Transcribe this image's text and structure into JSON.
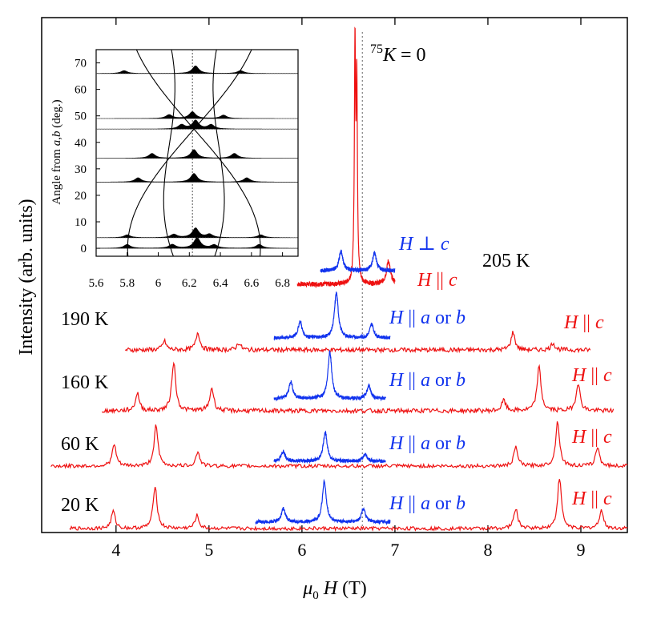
{
  "chart_data": {
    "type": "line",
    "xlabel": {
      "symbol": "μ",
      "sub": "0",
      "var": "H",
      "unit": "(T)"
    },
    "ylabel": "Intensity (arb. units)",
    "xlim": [
      3.2,
      9.5
    ],
    "xticks": [
      "4",
      "5",
      "6",
      "7",
      "8",
      "9"
    ],
    "reference_line": {
      "x": 6.65,
      "label_sup": "75",
      "label_var": "K",
      "label_rest": " = 0"
    },
    "colors": {
      "parallel_c": "#ee1111",
      "perp_c": "#1133ee"
    },
    "temperatures": [
      "205 K",
      "190 K",
      "160 K",
      "60 K",
      "20 K"
    ],
    "labels": {
      "h_perp_c": {
        "var": "H",
        "op": " ⊥ ",
        "axis": "c"
      },
      "h_par_c": {
        "var": "H",
        "op": " || ",
        "axis": "c"
      },
      "h_par_ab": {
        "var": "H",
        "op": " || ",
        "axis": "a",
        "or": " or ",
        "axis2": "b"
      }
    },
    "series": [
      {
        "temperature": "205 K",
        "field": "H || c",
        "color": "red",
        "range": [
          5.95,
          7.0
        ],
        "peaks": [
          [
            6.57,
            12
          ],
          [
            6.59,
            10
          ],
          [
            6.93,
            1.2
          ]
        ]
      },
      {
        "temperature": "205 K",
        "field": "H ⊥ c",
        "color": "blue",
        "range": [
          6.2,
          7.0
        ],
        "peaks": [
          [
            6.42,
            1.2
          ],
          [
            6.78,
            1.1
          ]
        ]
      },
      {
        "temperature": "190 K",
        "field": "H || a or b",
        "color": "blue",
        "range": [
          5.7,
          6.95
        ],
        "peaks": [
          [
            5.98,
            1.2
          ],
          [
            6.37,
            3.3
          ],
          [
            6.75,
            1.0
          ]
        ]
      },
      {
        "temperature": "190 K",
        "field": "H || c",
        "color": "red",
        "range": [
          4.1,
          9.1
        ],
        "peaks": [
          [
            4.52,
            0.5
          ],
          [
            4.88,
            1.0
          ],
          [
            5.32,
            0.4
          ],
          [
            8.27,
            1.0
          ],
          [
            8.7,
            0.4
          ]
        ]
      },
      {
        "temperature": "160 K",
        "field": "H || a or b",
        "color": "blue",
        "range": [
          5.7,
          6.9
        ],
        "peaks": [
          [
            5.88,
            1.2
          ],
          [
            6.3,
            3.2
          ],
          [
            6.72,
            0.9
          ]
        ]
      },
      {
        "temperature": "160 K",
        "field": "H || c",
        "color": "red",
        "range": [
          3.85,
          9.35
        ],
        "peaks": [
          [
            4.23,
            1.0
          ],
          [
            4.62,
            2.8
          ],
          [
            5.03,
            1.3
          ],
          [
            8.17,
            0.6
          ],
          [
            8.55,
            2.5
          ],
          [
            8.97,
            1.6
          ]
        ]
      },
      {
        "temperature": "60 K",
        "field": "H || a or b",
        "color": "blue",
        "range": [
          5.7,
          6.9
        ],
        "peaks": [
          [
            5.8,
            0.7
          ],
          [
            6.25,
            2.0
          ],
          [
            6.68,
            0.5
          ]
        ]
      },
      {
        "temperature": "60 K",
        "field": "H || c",
        "color": "red",
        "range": [
          3.3,
          9.5
        ],
        "peaks": [
          [
            3.98,
            1.5
          ],
          [
            4.43,
            2.8
          ],
          [
            4.88,
            1.0
          ],
          [
            8.3,
            1.3
          ],
          [
            8.75,
            3.1
          ],
          [
            9.18,
            1.3
          ]
        ]
      },
      {
        "temperature": "20 K",
        "field": "H || a or b",
        "color": "blue",
        "range": [
          5.5,
          6.95
        ],
        "peaks": [
          [
            5.8,
            1.0
          ],
          [
            6.24,
            3.0
          ],
          [
            6.66,
            1.0
          ]
        ]
      },
      {
        "temperature": "20 K",
        "field": "H || c",
        "color": "red",
        "range": [
          3.5,
          9.5
        ],
        "peaks": [
          [
            3.97,
            1.2
          ],
          [
            4.42,
            3.0
          ],
          [
            4.87,
            0.9
          ],
          [
            8.3,
            1.4
          ],
          [
            8.77,
            3.5
          ],
          [
            9.22,
            1.3
          ]
        ]
      }
    ],
    "inset": {
      "ylabel": "Angle from a,b (deg.)",
      "ylabel_pre": "Angle from ",
      "ylabel_a": "a",
      "ylabel_comma": ",",
      "ylabel_b": "b",
      "ylabel_post": " (deg.)",
      "xlim": [
        5.6,
        6.9
      ],
      "ylim": [
        -3,
        75
      ],
      "xticks": [
        "5.6",
        "5.8",
        "6",
        "6.2",
        "6.4",
        "6.6",
        "6.8"
      ],
      "yticks": [
        "0",
        "10",
        "20",
        "30",
        "40",
        "50",
        "60",
        "70"
      ],
      "reference_x": 6.22,
      "spectra": [
        {
          "angle": 0,
          "peaks": [
            [
              5.8,
              0.8
            ],
            [
              6.09,
              0.8
            ],
            [
              6.25,
              2.2
            ],
            [
              6.36,
              0.7
            ],
            [
              6.65,
              0.8
            ]
          ]
        },
        {
          "angle": 4,
          "peaks": [
            [
              5.8,
              0.6
            ],
            [
              6.1,
              0.7
            ],
            [
              6.24,
              2.0
            ],
            [
              6.33,
              0.7
            ],
            [
              6.66,
              0.6
            ]
          ]
        },
        {
          "angle": 25,
          "peaks": [
            [
              5.87,
              0.9
            ],
            [
              6.23,
              1.8
            ],
            [
              6.57,
              0.9
            ]
          ]
        },
        {
          "angle": 34,
          "peaks": [
            [
              5.96,
              1.0
            ],
            [
              6.23,
              1.8
            ],
            [
              6.49,
              1.0
            ]
          ]
        },
        {
          "angle": 45,
          "peaks": [
            [
              6.15,
              0.9
            ],
            [
              6.24,
              1.8
            ],
            [
              6.34,
              0.9
            ]
          ]
        },
        {
          "angle": 49,
          "peaks": [
            [
              6.07,
              0.8
            ],
            [
              6.22,
              1.4
            ],
            [
              6.42,
              0.7
            ]
          ]
        },
        {
          "angle": 66,
          "peaks": [
            [
              5.78,
              0.6
            ],
            [
              6.24,
              1.6
            ],
            [
              6.53,
              0.6
            ]
          ]
        }
      ]
    }
  }
}
